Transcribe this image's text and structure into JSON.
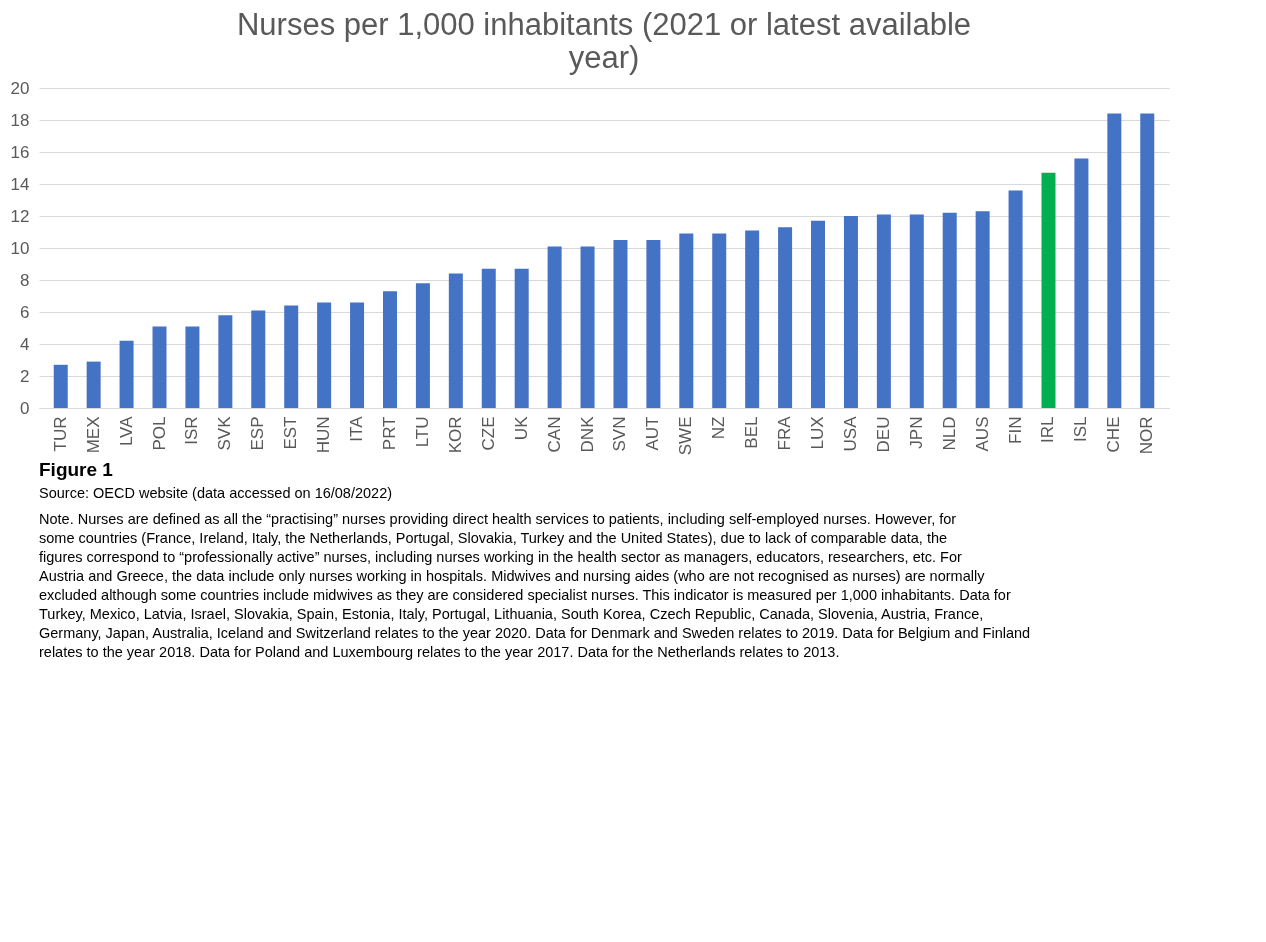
{
  "chart_data": {
    "type": "bar",
    "title": "Nurses per 1,000 inhabitants (2021 or latest available year)",
    "categories": [
      "TUR",
      "MEX",
      "LVA",
      "POL",
      "ISR",
      "SVK",
      "ESP",
      "EST",
      "HUN",
      "ITA",
      "PRT",
      "LTU",
      "KOR",
      "CZE",
      "UK",
      "CAN",
      "DNK",
      "SVN",
      "AUT",
      "SWE",
      "NZ",
      "BEL",
      "FRA",
      "LUX",
      "USA",
      "DEU",
      "JPN",
      "NLD",
      "AUS",
      "FIN",
      "IRL",
      "ISL",
      "CHE",
      "NOR"
    ],
    "values": [
      2.7,
      2.9,
      4.2,
      5.1,
      5.1,
      5.8,
      6.1,
      6.4,
      6.6,
      6.6,
      7.3,
      7.8,
      8.4,
      8.7,
      8.7,
      10.1,
      10.1,
      10.5,
      10.5,
      10.9,
      10.9,
      11.1,
      11.3,
      11.7,
      12.0,
      12.1,
      12.1,
      12.2,
      12.3,
      13.6,
      14.7,
      15.6,
      18.4,
      18.4
    ],
    "colors": [
      "#4472c4",
      "#4472c4",
      "#4472c4",
      "#4472c4",
      "#4472c4",
      "#4472c4",
      "#4472c4",
      "#4472c4",
      "#4472c4",
      "#4472c4",
      "#4472c4",
      "#4472c4",
      "#4472c4",
      "#4472c4",
      "#4472c4",
      "#4472c4",
      "#4472c4",
      "#4472c4",
      "#4472c4",
      "#4472c4",
      "#4472c4",
      "#4472c4",
      "#4472c4",
      "#4472c4",
      "#4472c4",
      "#4472c4",
      "#4472c4",
      "#4472c4",
      "#4472c4",
      "#4472c4",
      "#00b050",
      "#4472c4",
      "#4472c4",
      "#4472c4"
    ],
    "ylim": [
      0,
      20
    ],
    "yticks": [
      0,
      2,
      4,
      6,
      8,
      10,
      12,
      14,
      16,
      18,
      20
    ],
    "grid": "y",
    "annotations": [
      "Figure 1",
      "Source: OECD website (data accessed on 16/08/2022)",
      "Note. Nurses are defined as all the “practising” nurses providing direct health services to patients, including self-employed nurses. However, for some countries (France, Ireland, Italy, the Netherlands, Portugal, Slovakia, Turkey and the United States), due to lack of comparable data, the figures correspond to “professionally active” nurses, including nurses working in the health sector as managers, educators, researchers, etc. For Austria and Greece, the data include only nurses working in hospitals. Midwives and nursing aides (who are not recognised as nurses) are normally excluded although some countries include midwives as they are considered specialist nurses. This indicator is measured per 1,000 inhabitants. Data for Turkey, Mexico, Latvia, Israel, Slovakia, Spain, Estonia, Italy, Portugal, Lithuania, South Korea, Czech Republic, Canada, Slovenia, Austria, France, Germany, Japan, Australia, Iceland and Switzerland relates to the year 2020. Data for Denmark and Sweden relates to 2019. Data for Belgium and Finland relates to the year 2018. Data for Poland and Luxembourg relates to the year 2017. Data for the Netherlands relates to 2013."
    ]
  }
}
